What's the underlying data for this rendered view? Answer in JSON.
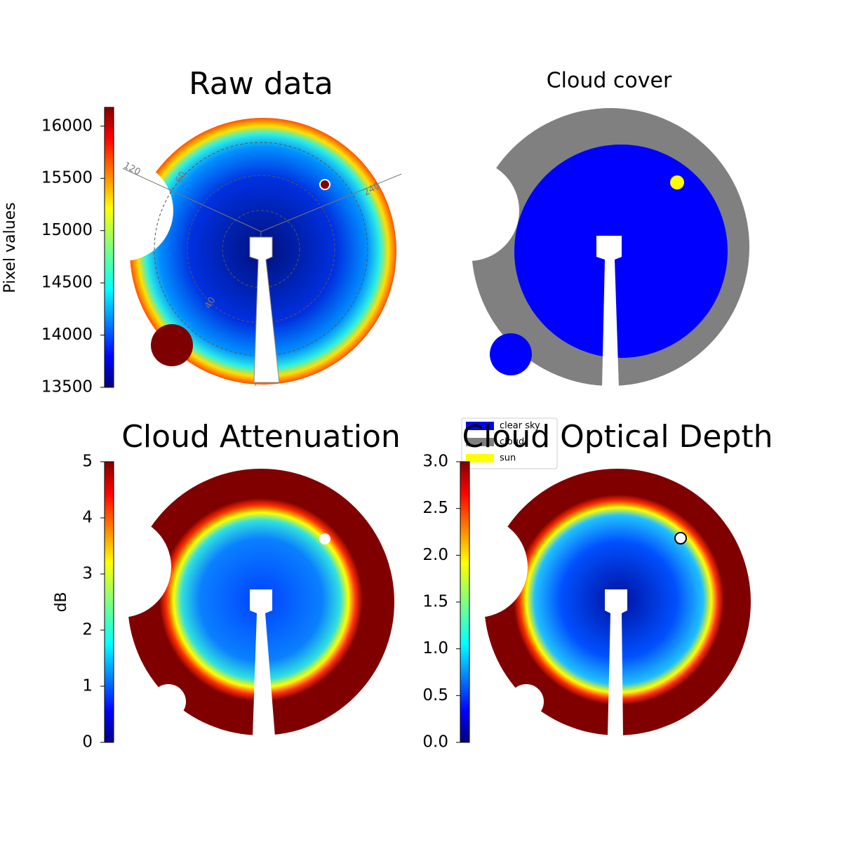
{
  "chart_data": [
    {
      "type": "image",
      "title": "Raw data",
      "colorbar_label": "Pixel values",
      "colormap": "jet",
      "ylim": [
        13500,
        16180
      ],
      "yticks": [
        13500,
        14000,
        14500,
        15000,
        15500,
        16000
      ],
      "annotations": [
        "120",
        "60",
        "240",
        "40"
      ]
    },
    {
      "type": "image",
      "title": "Cloud cover",
      "legend": [
        {
          "name": "clear sky",
          "color": "#0000ff"
        },
        {
          "name": "cloud",
          "color": "#808080"
        },
        {
          "name": "sun",
          "color": "#ffff00"
        }
      ]
    },
    {
      "type": "image",
      "title": "Cloud Attenuation",
      "colorbar_label": "dB",
      "colormap": "jet",
      "ylim": [
        0,
        5
      ],
      "yticks": [
        0,
        1,
        2,
        3,
        4,
        5
      ]
    },
    {
      "type": "image",
      "title": "Cloud Optical Depth",
      "colormap": "jet",
      "ylim": [
        0,
        3
      ],
      "yticks": [
        {
          "value": 0,
          "label": "0.0"
        },
        0.5,
        {
          "value": 1,
          "label": "1.0"
        },
        1.5,
        {
          "value": 2,
          "label": "2.0"
        },
        2.5,
        {
          "value": 3,
          "label": "3.0"
        }
      ]
    }
  ]
}
